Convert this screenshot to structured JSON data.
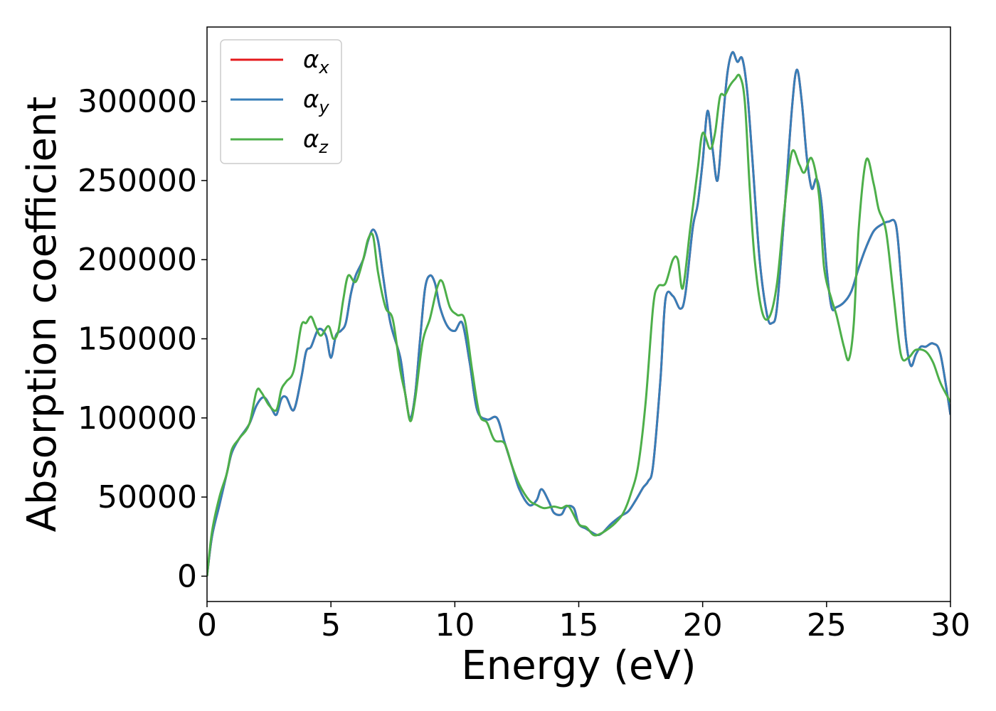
{
  "chart_data": {
    "type": "line",
    "xlabel": "Energy (eV)",
    "ylabel": "Absorption coefficient",
    "xlim": [
      0,
      30
    ],
    "ylim": [
      -16000,
      347000
    ],
    "xticks": [
      0,
      5,
      10,
      15,
      20,
      25,
      30
    ],
    "yticks": [
      0,
      50000,
      100000,
      150000,
      200000,
      250000,
      300000
    ],
    "grid": false,
    "legend": "top-left",
    "series": [
      {
        "name": "α_x",
        "symbol": "α",
        "subscript": "x",
        "color": "#e41a1c",
        "x": [
          0,
          0.2,
          0.5,
          0.8,
          1.0,
          1.3,
          1.7,
          2.0,
          2.3,
          2.6,
          2.8,
          3.0,
          3.2,
          3.5,
          3.8,
          4.0,
          4.2,
          4.5,
          4.8,
          5.0,
          5.2,
          5.4,
          5.6,
          5.8,
          6.0,
          6.3,
          6.5,
          6.7,
          6.9,
          7.1,
          7.4,
          7.8,
          8.0,
          8.2,
          8.4,
          8.6,
          8.8,
          9.0,
          9.2,
          9.4,
          9.7,
          10.0,
          10.3,
          10.6,
          10.9,
          11.3,
          11.7,
          12.0,
          12.3,
          12.6,
          13.0,
          13.3,
          13.5,
          13.8,
          14.0,
          14.3,
          14.5,
          14.8,
          15.0,
          15.3,
          15.6,
          15.8,
          16.0,
          16.3,
          16.7,
          17.0,
          17.3,
          17.6,
          17.8,
          18.0,
          18.3,
          18.5,
          18.8,
          19.1,
          19.3,
          19.6,
          19.8,
          20.0,
          20.2,
          20.4,
          20.6,
          20.8,
          21.0,
          21.2,
          21.4,
          21.6,
          21.8,
          22.0,
          22.3,
          22.6,
          22.8,
          23.0,
          23.3,
          23.6,
          23.8,
          24.0,
          24.2,
          24.4,
          24.6,
          24.8,
          25.0,
          25.2,
          25.4,
          25.7,
          26.0,
          26.3,
          26.6,
          26.9,
          27.2,
          27.5,
          27.8,
          28.0,
          28.2,
          28.4,
          28.6,
          28.8,
          29.0,
          29.3,
          29.6,
          30.0
        ],
        "y": [
          0,
          25000,
          45000,
          65000,
          78000,
          87000,
          96000,
          108000,
          113000,
          106000,
          102000,
          112000,
          113000,
          105000,
          125000,
          142000,
          145000,
          156000,
          152000,
          138000,
          152000,
          155000,
          160000,
          178000,
          190000,
          200000,
          212000,
          219000,
          212000,
          190000,
          160000,
          138000,
          115000,
          100000,
          115000,
          150000,
          182000,
          190000,
          185000,
          170000,
          158000,
          155000,
          160000,
          135000,
          105000,
          99000,
          100000,
          85000,
          70000,
          55000,
          45000,
          48000,
          55000,
          47000,
          40000,
          39000,
          44000,
          43000,
          33000,
          30000,
          27000,
          26000,
          28000,
          33000,
          38000,
          41000,
          48000,
          56000,
          60000,
          70000,
          125000,
          175000,
          177000,
          169000,
          178000,
          220000,
          235000,
          262000,
          294000,
          270000,
          250000,
          285000,
          318000,
          331000,
          325000,
          327000,
          306000,
          265000,
          200000,
          165000,
          160000,
          170000,
          230000,
          295000,
          320000,
          300000,
          265000,
          245000,
          251000,
          235000,
          195000,
          170000,
          170000,
          173000,
          180000,
          195000,
          208000,
          218000,
          222000,
          224000,
          222000,
          190000,
          150000,
          133000,
          140000,
          145000,
          145000,
          147000,
          140000,
          102000
        ]
      },
      {
        "name": "α_y",
        "symbol": "α",
        "subscript": "y",
        "color": "#377eb8",
        "x": [
          0,
          0.2,
          0.5,
          0.8,
          1.0,
          1.3,
          1.7,
          2.0,
          2.3,
          2.6,
          2.8,
          3.0,
          3.2,
          3.5,
          3.8,
          4.0,
          4.2,
          4.5,
          4.8,
          5.0,
          5.2,
          5.4,
          5.6,
          5.8,
          6.0,
          6.3,
          6.5,
          6.7,
          6.9,
          7.1,
          7.4,
          7.8,
          8.0,
          8.2,
          8.4,
          8.6,
          8.8,
          9.0,
          9.2,
          9.4,
          9.7,
          10.0,
          10.3,
          10.6,
          10.9,
          11.3,
          11.7,
          12.0,
          12.3,
          12.6,
          13.0,
          13.3,
          13.5,
          13.8,
          14.0,
          14.3,
          14.5,
          14.8,
          15.0,
          15.3,
          15.6,
          15.8,
          16.0,
          16.3,
          16.7,
          17.0,
          17.3,
          17.6,
          17.8,
          18.0,
          18.3,
          18.5,
          18.8,
          19.1,
          19.3,
          19.6,
          19.8,
          20.0,
          20.2,
          20.4,
          20.6,
          20.8,
          21.0,
          21.2,
          21.4,
          21.6,
          21.8,
          22.0,
          22.3,
          22.6,
          22.8,
          23.0,
          23.3,
          23.6,
          23.8,
          24.0,
          24.2,
          24.4,
          24.6,
          24.8,
          25.0,
          25.2,
          25.4,
          25.7,
          26.0,
          26.3,
          26.6,
          26.9,
          27.2,
          27.5,
          27.8,
          28.0,
          28.2,
          28.4,
          28.6,
          28.8,
          29.0,
          29.3,
          29.6,
          30.0
        ],
        "y": [
          0,
          25000,
          45000,
          65000,
          78000,
          87000,
          96000,
          108000,
          113000,
          106000,
          102000,
          112000,
          113000,
          105000,
          125000,
          142000,
          145000,
          156000,
          152000,
          138000,
          152000,
          155000,
          160000,
          178000,
          190000,
          200000,
          212000,
          219000,
          212000,
          190000,
          160000,
          138000,
          115000,
          100000,
          115000,
          150000,
          182000,
          190000,
          185000,
          170000,
          158000,
          155000,
          160000,
          135000,
          105000,
          99000,
          100000,
          85000,
          70000,
          55000,
          45000,
          48000,
          55000,
          47000,
          40000,
          39000,
          44000,
          43000,
          33000,
          30000,
          27000,
          26000,
          28000,
          33000,
          38000,
          41000,
          48000,
          56000,
          60000,
          70000,
          125000,
          175000,
          177000,
          169000,
          178000,
          220000,
          235000,
          262000,
          294000,
          270000,
          250000,
          285000,
          318000,
          331000,
          325000,
          327000,
          306000,
          265000,
          200000,
          165000,
          160000,
          170000,
          230000,
          295000,
          320000,
          300000,
          265000,
          245000,
          251000,
          235000,
          195000,
          170000,
          170000,
          173000,
          180000,
          195000,
          208000,
          218000,
          222000,
          224000,
          222000,
          190000,
          150000,
          133000,
          140000,
          145000,
          145000,
          147000,
          140000,
          102000
        ]
      },
      {
        "name": "α_z",
        "symbol": "α",
        "subscript": "z",
        "color": "#4daf4a",
        "x": [
          0,
          0.2,
          0.5,
          0.8,
          1.0,
          1.3,
          1.7,
          2.0,
          2.2,
          2.5,
          2.8,
          3.0,
          3.2,
          3.5,
          3.8,
          4.0,
          4.2,
          4.4,
          4.6,
          4.9,
          5.1,
          5.3,
          5.5,
          5.7,
          6.0,
          6.3,
          6.5,
          6.7,
          6.9,
          7.2,
          7.5,
          7.8,
          8.0,
          8.2,
          8.4,
          8.7,
          9.0,
          9.3,
          9.5,
          9.8,
          10.1,
          10.4,
          10.7,
          11.0,
          11.3,
          11.6,
          12.0,
          12.3,
          12.6,
          13.0,
          13.3,
          13.6,
          14.0,
          14.3,
          14.6,
          15.0,
          15.3,
          15.6,
          15.9,
          16.2,
          16.5,
          16.8,
          17.1,
          17.4,
          17.7,
          18.0,
          18.2,
          18.5,
          18.8,
          19.0,
          19.2,
          19.5,
          19.8,
          20.0,
          20.3,
          20.5,
          20.7,
          20.9,
          21.1,
          21.3,
          21.5,
          21.7,
          21.9,
          22.1,
          22.4,
          22.7,
          23.0,
          23.3,
          23.6,
          23.9,
          24.1,
          24.4,
          24.7,
          24.9,
          25.2,
          25.4,
          25.7,
          25.9,
          26.1,
          26.3,
          26.6,
          26.9,
          27.1,
          27.4,
          27.7,
          28.0,
          28.3,
          28.6,
          29.0,
          29.3,
          29.6,
          30.0
        ],
        "y": [
          0,
          28000,
          50000,
          65000,
          80000,
          87000,
          96000,
          117000,
          116000,
          108000,
          105000,
          118000,
          123000,
          130000,
          158000,
          160000,
          164000,
          157000,
          152000,
          158000,
          150000,
          155000,
          175000,
          190000,
          186000,
          200000,
          213000,
          215000,
          192000,
          170000,
          162000,
          130000,
          115000,
          98000,
          112000,
          148000,
          163000,
          183000,
          186000,
          170000,
          165000,
          162000,
          130000,
          102000,
          97000,
          86000,
          84000,
          70000,
          58000,
          48000,
          45000,
          43000,
          44000,
          43000,
          44000,
          33000,
          31000,
          26000,
          27000,
          30000,
          34000,
          40000,
          52000,
          70000,
          110000,
          170000,
          183000,
          185000,
          200000,
          200000,
          182000,
          220000,
          257000,
          280000,
          270000,
          280000,
          303000,
          304000,
          310000,
          314000,
          316000,
          300000,
          245000,
          200000,
          167000,
          164000,
          185000,
          232000,
          268000,
          260000,
          255000,
          264000,
          240000,
          195000,
          175000,
          165000,
          145000,
          137000,
          160000,
          220000,
          263000,
          248000,
          232000,
          218000,
          178000,
          140000,
          138000,
          143000,
          142000,
          135000,
          122000,
          110000
        ]
      }
    ]
  }
}
